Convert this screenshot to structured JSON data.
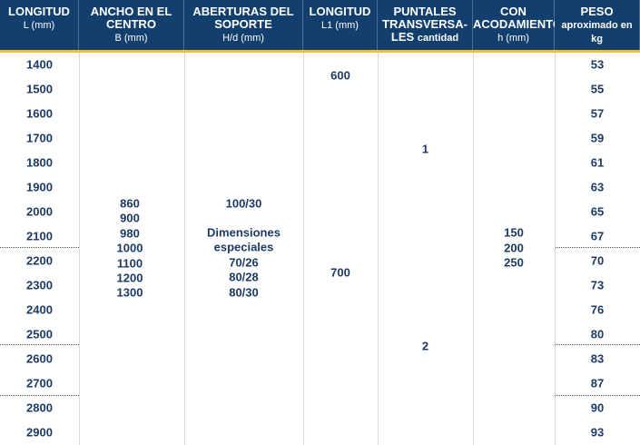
{
  "table": {
    "header": [
      {
        "lines": [
          "LONGITUD"
        ],
        "unit": "L (mm)"
      },
      {
        "lines": [
          "ANCHO EN EL",
          "CENTRO"
        ],
        "unit": "B (mm)"
      },
      {
        "lines": [
          "ABERTURAS DEL",
          "SOPORTE"
        ],
        "unit": "H/d (mm)"
      },
      {
        "lines": [
          "LONGITUD"
        ],
        "unit": "L1 (mm)"
      },
      {
        "lines": [
          "PUNTALES",
          "TRANSVERSA-",
          "LES"
        ],
        "unit": "cantidad"
      },
      {
        "lines": [
          "CON",
          "ACODAMIENTO"
        ],
        "unit": "h (mm)"
      },
      {
        "lines": [
          "PESO"
        ],
        "unit": "aproximado en kg"
      }
    ],
    "length": [
      1400,
      1500,
      1600,
      1700,
      1800,
      1900,
      2000,
      2100,
      2200,
      2300,
      2400,
      2500,
      2600,
      2700,
      2800,
      2900
    ],
    "width": [
      860,
      900,
      980,
      1000,
      1100,
      1200,
      1300
    ],
    "openings": [
      "100/30",
      "Dimensiones",
      "especiales",
      "70/26",
      "80/28",
      "80/30"
    ],
    "length_l1": [
      600,
      700
    ],
    "cross_struts": [
      1,
      2
    ],
    "bracing": [
      150,
      200,
      250
    ],
    "weight": [
      53,
      55,
      57,
      59,
      61,
      63,
      65,
      67,
      70,
      73,
      76,
      80,
      83,
      87,
      90,
      93
    ]
  }
}
